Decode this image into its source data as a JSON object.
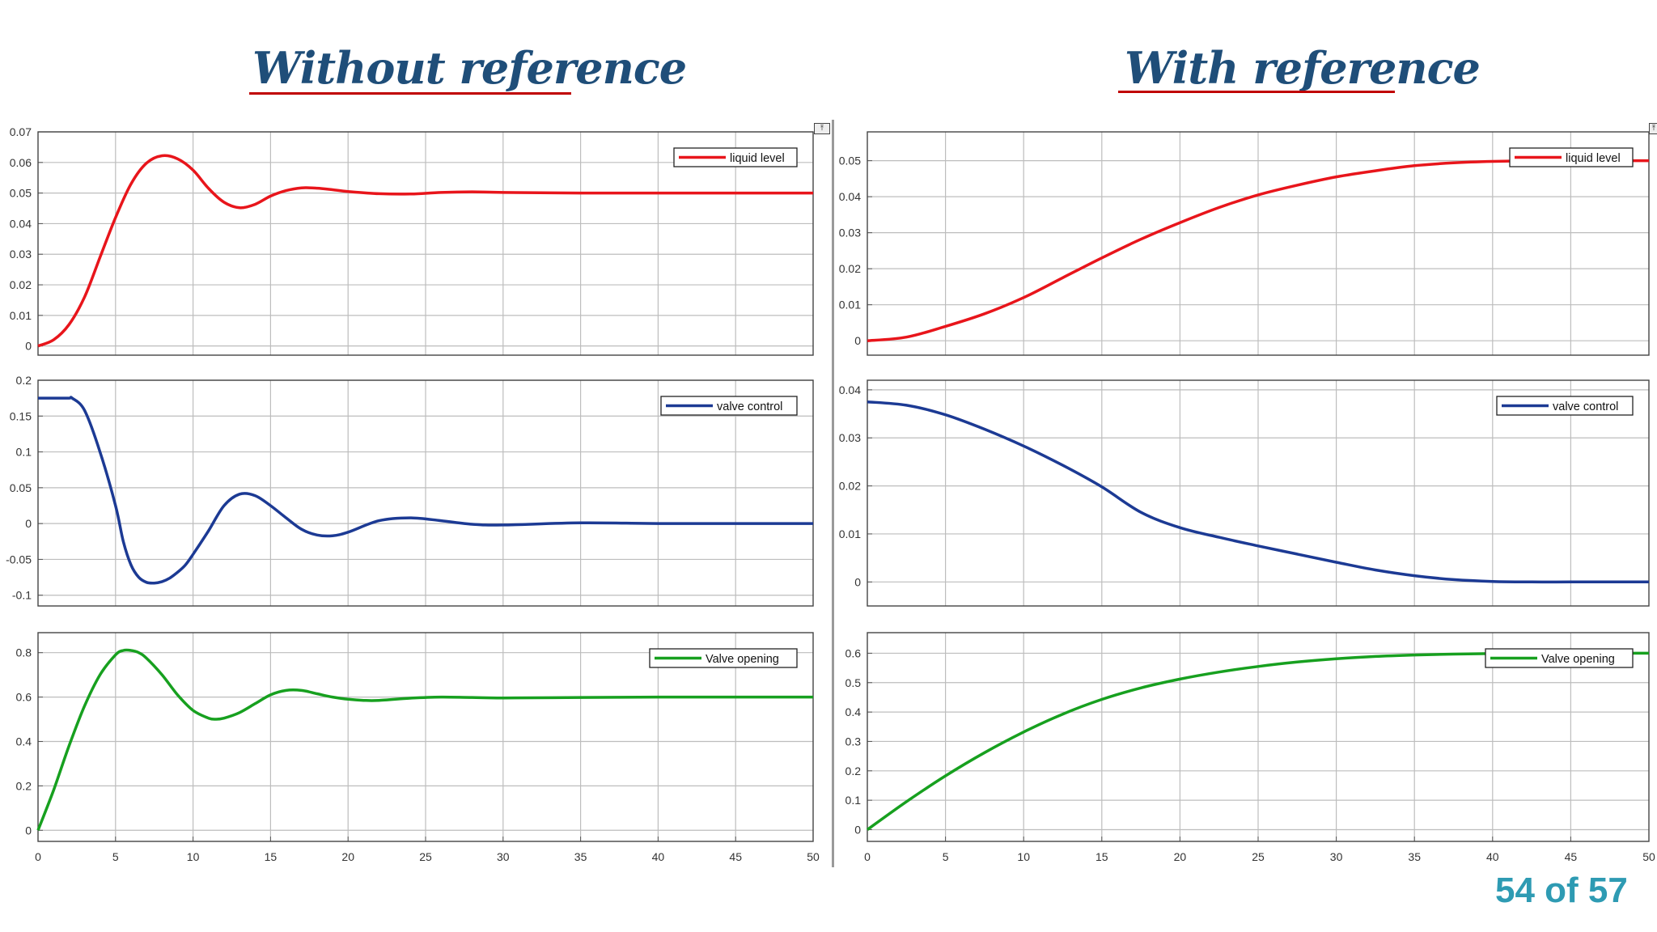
{
  "slide": {
    "left_heading": "Without reference",
    "right_heading": "With reference",
    "page_number": "54 of 57"
  },
  "colors": {
    "heading": "#1f4e79",
    "underline": "#c00000",
    "page_number": "#2e9bb3",
    "liquid_level": "#e8151b",
    "valve_control": "#1c3a94",
    "valve_opening": "#17a01f"
  },
  "chart_data": [
    {
      "id": "without-liquid-level",
      "type": "line",
      "group": "Without reference",
      "xlim": [
        0,
        50
      ],
      "ylim": [
        -0.003,
        0.07
      ],
      "yticks": [
        0,
        0.01,
        0.02,
        0.03,
        0.04,
        0.05,
        0.06,
        0.07
      ],
      "ytick_labels": [
        "0",
        "0.01",
        "0.02",
        "0.03",
        "0.04",
        "0.05",
        "0.06",
        "0.07"
      ],
      "grid": true,
      "legend": "top-right",
      "series": [
        {
          "name": "liquid level",
          "color": "#e8151b",
          "x": [
            0,
            1,
            2,
            3,
            4,
            5,
            6,
            7,
            8,
            9,
            10,
            11,
            12,
            13,
            14,
            15,
            16,
            17,
            18,
            19,
            20,
            22,
            24,
            26,
            28,
            30,
            35,
            40,
            45,
            50
          ],
          "y": [
            0,
            0.002,
            0.007,
            0.016,
            0.029,
            0.042,
            0.053,
            0.0598,
            0.0622,
            0.0612,
            0.0575,
            0.0515,
            0.047,
            0.0452,
            0.0463,
            0.049,
            0.0508,
            0.0517,
            0.0516,
            0.0511,
            0.0505,
            0.0498,
            0.0497,
            0.0502,
            0.0504,
            0.0502,
            0.05,
            0.05,
            0.05,
            0.05
          ]
        }
      ]
    },
    {
      "id": "with-liquid-level",
      "type": "line",
      "group": "With reference",
      "xlim": [
        0,
        50
      ],
      "ylim": [
        -0.004,
        0.058
      ],
      "yticks": [
        0,
        0.01,
        0.02,
        0.03,
        0.04,
        0.05
      ],
      "ytick_labels": [
        "0",
        "0.01",
        "0.02",
        "0.03",
        "0.04",
        "0.05"
      ],
      "grid": true,
      "legend": "top-right",
      "series": [
        {
          "name": "liquid level",
          "color": "#e8151b",
          "x": [
            0,
            2.5,
            5,
            7.5,
            10,
            12.5,
            15,
            17.5,
            20,
            22.5,
            25,
            27.5,
            30,
            32.5,
            35,
            37.5,
            40,
            42.5,
            45,
            47.5,
            50
          ],
          "y": [
            0,
            0.001,
            0.004,
            0.0075,
            0.012,
            0.0175,
            0.023,
            0.0282,
            0.0328,
            0.037,
            0.0405,
            0.0432,
            0.0455,
            0.0472,
            0.0486,
            0.0494,
            0.0498,
            0.05,
            0.05,
            0.05,
            0.05
          ]
        }
      ]
    },
    {
      "id": "without-valve-control",
      "type": "line",
      "group": "Without reference",
      "xlim": [
        0,
        50
      ],
      "ylim": [
        -0.115,
        0.2
      ],
      "yticks": [
        -0.1,
        -0.05,
        0,
        0.05,
        0.1,
        0.15,
        0.2
      ],
      "ytick_labels": [
        "-0.1",
        "-0.05",
        "0",
        "0.05",
        "0.1",
        "0.15",
        "0.2"
      ],
      "grid": true,
      "legend": "top-right",
      "series": [
        {
          "name": "valve control",
          "color": "#1c3a94",
          "x": [
            0,
            1,
            2,
            2.2,
            3,
            4,
            5,
            5.5,
            6,
            6.5,
            7,
            7.5,
            8,
            8.5,
            9,
            9.5,
            10,
            11,
            12,
            13,
            14,
            15,
            16,
            17,
            18,
            19,
            20,
            22,
            24,
            26,
            28,
            30,
            35,
            40,
            45,
            50
          ],
          "y": [
            0.175,
            0.175,
            0.175,
            0.175,
            0.158,
            0.1,
            0.025,
            -0.025,
            -0.058,
            -0.075,
            -0.082,
            -0.083,
            -0.081,
            -0.076,
            -0.068,
            -0.058,
            -0.043,
            -0.01,
            0.025,
            0.041,
            0.039,
            0.025,
            0.008,
            -0.008,
            -0.016,
            -0.017,
            -0.012,
            0.004,
            0.008,
            0.004,
            -0.001,
            -0.002,
            0.001,
            0,
            0,
            0
          ]
        }
      ]
    },
    {
      "id": "with-valve-control",
      "type": "line",
      "group": "With reference",
      "xlim": [
        0,
        50
      ],
      "ylim": [
        -0.005,
        0.042
      ],
      "yticks": [
        0,
        0.01,
        0.02,
        0.03,
        0.04
      ],
      "ytick_labels": [
        "0",
        "0.01",
        "0.02",
        "0.03",
        "0.04"
      ],
      "grid": true,
      "legend": "top-right",
      "series": [
        {
          "name": "valve control",
          "color": "#1c3a94",
          "x": [
            0,
            2.5,
            5,
            7.5,
            10,
            12.5,
            15,
            17.5,
            20,
            22.5,
            25,
            27.5,
            30,
            32.5,
            35,
            37.5,
            40,
            42.5,
            45,
            47.5,
            50
          ],
          "y": [
            0.0375,
            0.0368,
            0.0348,
            0.0318,
            0.0283,
            0.0243,
            0.0198,
            0.0145,
            0.0113,
            0.0093,
            0.0075,
            0.0058,
            0.0041,
            0.0025,
            0.0013,
            0.0005,
            0.0001,
            0,
            0,
            0,
            0
          ]
        }
      ]
    },
    {
      "id": "without-valve-opening",
      "type": "line",
      "group": "Without reference",
      "xlim": [
        0,
        50
      ],
      "ylim": [
        -0.05,
        0.89
      ],
      "yticks": [
        0,
        0.2,
        0.4,
        0.6,
        0.8
      ],
      "ytick_labels": [
        "0",
        "0.2",
        "0.4",
        "0.6",
        "0.8"
      ],
      "xticks": [
        0,
        5,
        10,
        15,
        20,
        25,
        30,
        35,
        40,
        45,
        50
      ],
      "xtick_labels": [
        "0",
        "5",
        "10",
        "15",
        "20",
        "25",
        "30",
        "35",
        "40",
        "45",
        "50"
      ],
      "grid": true,
      "legend": "top-right",
      "series": [
        {
          "name": "Valve opening",
          "color": "#17a01f",
          "x": [
            0,
            1,
            2,
            3,
            4,
            5,
            5.5,
            6,
            6.5,
            7,
            8,
            9,
            10,
            11,
            11.5,
            12,
            13,
            14,
            15,
            16,
            17,
            18,
            19,
            20,
            21,
            22,
            24,
            26,
            28,
            30,
            35,
            40,
            45,
            50
          ],
          "y": [
            0,
            0.18,
            0.38,
            0.56,
            0.7,
            0.79,
            0.81,
            0.81,
            0.8,
            0.775,
            0.7,
            0.61,
            0.54,
            0.505,
            0.5,
            0.505,
            0.53,
            0.57,
            0.61,
            0.63,
            0.63,
            0.615,
            0.6,
            0.59,
            0.585,
            0.585,
            0.595,
            0.6,
            0.598,
            0.596,
            0.598,
            0.6,
            0.6,
            0.6
          ]
        }
      ]
    },
    {
      "id": "with-valve-opening",
      "type": "line",
      "group": "With reference",
      "xlim": [
        0,
        50
      ],
      "ylim": [
        -0.04,
        0.67
      ],
      "yticks": [
        0,
        0.1,
        0.2,
        0.3,
        0.4,
        0.5,
        0.6
      ],
      "ytick_labels": [
        "0",
        "0.1",
        "0.2",
        "0.3",
        "0.4",
        "0.5",
        "0.6"
      ],
      "xticks": [
        0,
        5,
        10,
        15,
        20,
        25,
        30,
        35,
        40,
        45,
        50
      ],
      "xtick_labels": [
        "0",
        "5",
        "10",
        "15",
        "20",
        "25",
        "30",
        "35",
        "40",
        "45",
        "50"
      ],
      "grid": true,
      "legend": "top-right",
      "series": [
        {
          "name": "Valve opening",
          "color": "#17a01f",
          "x": [
            0,
            2.5,
            5,
            7.5,
            10,
            12.5,
            15,
            17.5,
            20,
            22.5,
            25,
            27.5,
            30,
            32.5,
            35,
            37.5,
            40,
            42.5,
            45,
            47.5,
            50
          ],
          "y": [
            0,
            0.095,
            0.183,
            0.262,
            0.332,
            0.393,
            0.443,
            0.482,
            0.512,
            0.536,
            0.555,
            0.57,
            0.581,
            0.589,
            0.594,
            0.597,
            0.599,
            0.6,
            0.6,
            0.6,
            0.6
          ]
        }
      ]
    }
  ]
}
